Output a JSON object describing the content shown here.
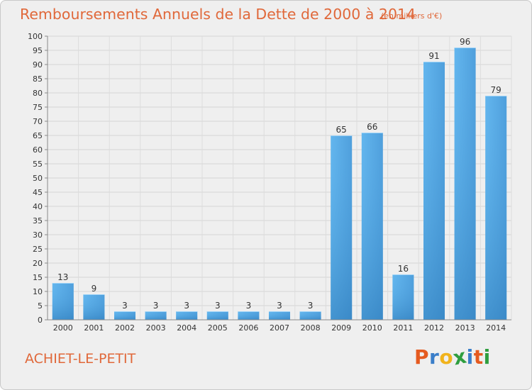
{
  "header": {
    "title": "Remboursements Annuels de la Dette de 2000 à 2014",
    "subtitle": "(en milliers d'€)"
  },
  "footer": {
    "city": "ACHIET-LE-PETIT",
    "logo": "Proxiti"
  },
  "colors": {
    "bar_light": "#5aaee8",
    "bar_dark": "#2c7fbf",
    "text_accent": "#e0683a",
    "axis": "#888888"
  },
  "chart_data": {
    "type": "bar",
    "title": "Remboursements Annuels de la Dette de 2000 à 2014",
    "subtitle": "(en milliers d'€)",
    "categories": [
      "2000",
      "2001",
      "2002",
      "2003",
      "2004",
      "2005",
      "2006",
      "2007",
      "2008",
      "2009",
      "2010",
      "2011",
      "2012",
      "2013",
      "2014"
    ],
    "values": [
      13,
      9,
      3,
      3,
      3,
      3,
      3,
      3,
      3,
      65,
      66,
      16,
      91,
      96,
      79
    ],
    "ylim": [
      0,
      100
    ],
    "yticks": [
      0,
      5,
      10,
      15,
      20,
      25,
      30,
      35,
      40,
      45,
      50,
      55,
      60,
      65,
      70,
      75,
      80,
      85,
      90,
      95,
      100
    ],
    "grid": true,
    "legend": "none"
  }
}
